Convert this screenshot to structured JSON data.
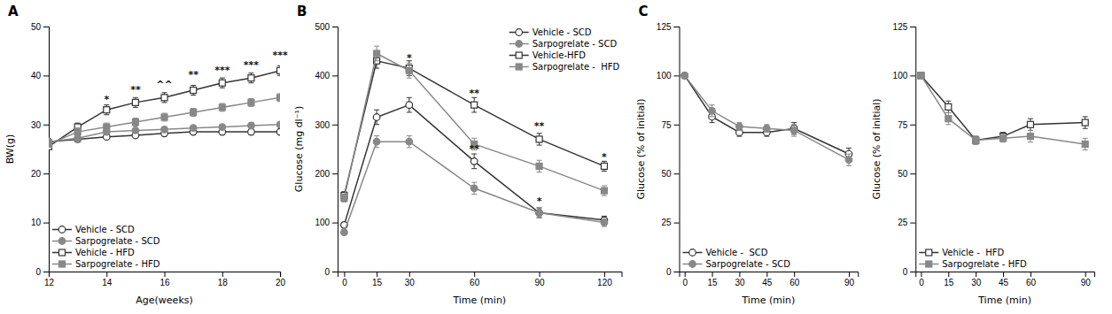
{
  "chart_data": [
    {
      "type": "line",
      "title": "A",
      "x_label": "Age(weeks)",
      "y_label": "BW(g)",
      "xlim": [
        12,
        20
      ],
      "ylim": [
        0,
        50
      ],
      "xticks": [
        12,
        14,
        16,
        18,
        20
      ],
      "yticks": [
        0,
        10,
        20,
        30,
        40,
        50
      ],
      "legend": "lower left",
      "x": [
        12,
        13,
        14,
        15,
        16,
        17,
        18,
        19,
        20
      ],
      "series": [
        {
          "name": "Vehicle - SCD",
          "color": "#333333",
          "marker": "circle-open",
          "values": [
            26.5,
            27.0,
            27.5,
            27.8,
            28.2,
            28.5,
            28.5,
            28.5,
            28.5
          ],
          "yerr": [
            0.5,
            0.5,
            0.5,
            0.5,
            0.5,
            0.5,
            0.5,
            0.5,
            0.5
          ]
        },
        {
          "name": "Sarpogrelate - SCD",
          "color": "#888888",
          "marker": "circle",
          "values": [
            26.5,
            27.2,
            28.5,
            28.8,
            29.0,
            29.3,
            29.5,
            29.8,
            30.0
          ],
          "yerr": [
            0.5,
            0.5,
            0.5,
            0.5,
            0.5,
            0.5,
            0.5,
            0.5,
            0.5
          ]
        },
        {
          "name": "Vehicle - HFD",
          "color": "#333333",
          "marker": "square-open",
          "values": [
            25.5,
            29.5,
            33.0,
            34.5,
            35.5,
            37.0,
            38.5,
            39.5,
            41.0
          ],
          "yerr": [
            0.5,
            0.8,
            1.0,
            1.0,
            1.0,
            1.0,
            1.0,
            1.0,
            1.0
          ]
        },
        {
          "name": "Sarpogrelate - HFD",
          "color": "#888888",
          "marker": "square",
          "values": [
            26.0,
            28.5,
            29.5,
            30.5,
            31.5,
            32.5,
            33.5,
            34.5,
            35.5
          ],
          "yerr": [
            0.5,
            0.8,
            0.8,
            0.8,
            0.8,
            0.8,
            0.8,
            0.8,
            0.8
          ]
        }
      ],
      "annotations": [
        {
          "text": "*",
          "x": 14,
          "y": 34.5
        },
        {
          "text": "**",
          "x": 15,
          "y": 36.5
        },
        {
          "text": "^^",
          "x": 16,
          "y": 37.5
        },
        {
          "text": "**",
          "x": 17,
          "y": 39.5
        },
        {
          "text": "***",
          "x": 18,
          "y": 40.5
        },
        {
          "text": "***",
          "x": 19,
          "y": 41.5
        },
        {
          "text": "***",
          "x": 20,
          "y": 43.5
        }
      ]
    },
    {
      "type": "line",
      "title": "B",
      "x_label": "Time (min)",
      "y_label": "Glucose (mg dl⁻¹)",
      "xlim": [
        -3,
        128
      ],
      "ylim": [
        0,
        500
      ],
      "xticks": [
        0,
        15,
        30,
        60,
        90,
        120
      ],
      "yticks": [
        0,
        100,
        200,
        300,
        400,
        500
      ],
      "legend": "upper right",
      "x": [
        0,
        15,
        30,
        60,
        90,
        120
      ],
      "series": [
        {
          "name": "Vehicle - SCD",
          "color": "#333333",
          "marker": "circle-open",
          "values": [
            95,
            315,
            340,
            225,
            120,
            105
          ],
          "yerr": [
            5,
            15,
            15,
            15,
            10,
            8
          ]
        },
        {
          "name": "Sarpogrelate - SCD",
          "color": "#888888",
          "marker": "circle",
          "values": [
            80,
            265,
            265,
            170,
            120,
            100
          ],
          "yerr": [
            5,
            12,
            12,
            12,
            10,
            8
          ]
        },
        {
          "name": "Vehicle-HFD",
          "color": "#333333",
          "marker": "square-open",
          "values": [
            155,
            430,
            415,
            340,
            270,
            215
          ],
          "yerr": [
            8,
            15,
            15,
            15,
            12,
            10
          ]
        },
        {
          "name": "Sarpogrelate -  HFD",
          "color": "#888888",
          "marker": "square",
          "values": [
            150,
            445,
            410,
            260,
            215,
            165
          ],
          "yerr": [
            8,
            15,
            15,
            12,
            12,
            10
          ]
        }
      ],
      "annotations": [
        {
          "text": "*",
          "x": 30,
          "y": 430
        },
        {
          "text": "**",
          "x": 60,
          "y": 358
        },
        {
          "text": "**",
          "x": 60,
          "y": 243
        },
        {
          "text": "**",
          "x": 90,
          "y": 290
        },
        {
          "text": "*",
          "x": 90,
          "y": 138
        },
        {
          "text": "*",
          "x": 120,
          "y": 228
        }
      ]
    },
    {
      "type": "line",
      "title": "C",
      "x_label": "Time (min)",
      "y_label": "Glucose (% of initial)",
      "xlim": [
        -3,
        95
      ],
      "ylim": [
        0,
        125
      ],
      "xticks": [
        0,
        15,
        30,
        45,
        60,
        90
      ],
      "yticks": [
        0,
        25,
        50,
        75,
        100,
        125
      ],
      "legend": "lower left",
      "x": [
        0,
        15,
        30,
        45,
        60,
        90
      ],
      "series": [
        {
          "name": "Vehicle -  SCD",
          "color": "#333333",
          "marker": "circle-open",
          "values": [
            100,
            79,
            71,
            71,
            73,
            60
          ],
          "yerr": [
            0,
            3,
            2,
            2,
            3,
            3
          ]
        },
        {
          "name": "Sarpogrelate - SCD",
          "color": "#888888",
          "marker": "circle",
          "values": [
            100,
            82,
            74,
            73,
            72,
            57
          ],
          "yerr": [
            0,
            3,
            2,
            2,
            3,
            3
          ]
        }
      ]
    },
    {
      "type": "line",
      "x_label": "Time (min)",
      "y_label": "Glucose (% of initial)",
      "xlim": [
        -3,
        95
      ],
      "ylim": [
        0,
        125
      ],
      "xticks": [
        0,
        15,
        30,
        45,
        60,
        90
      ],
      "yticks": [
        0,
        25,
        50,
        75,
        100,
        125
      ],
      "legend": "lower left",
      "x": [
        0,
        15,
        30,
        45,
        60,
        90
      ],
      "series": [
        {
          "name": "Vehicle -  HFD",
          "color": "#333333",
          "marker": "square-open",
          "values": [
            100,
            84,
            67,
            69,
            75,
            76
          ],
          "yerr": [
            0,
            3,
            2,
            2,
            3,
            3
          ]
        },
        {
          "name": "Sarpogrelate - HFD",
          "color": "#888888",
          "marker": "square",
          "values": [
            100,
            78,
            67,
            68,
            69,
            65
          ],
          "yerr": [
            0,
            3,
            2,
            2,
            3,
            3
          ]
        }
      ]
    }
  ]
}
